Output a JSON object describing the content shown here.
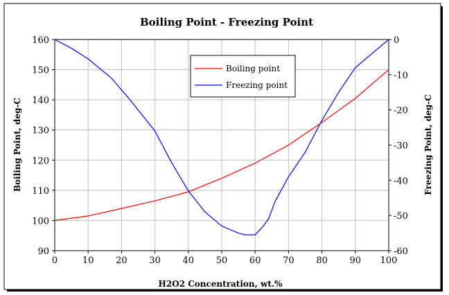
{
  "chart_data": {
    "type": "line",
    "title": "Boiling Point  -  Freezing Point",
    "xlabel": "H2O2 Concentration, wt.%",
    "ylabel": "Boiling Point, deg-C",
    "y2label": "Freezing Point, deg-C",
    "xlim": [
      0,
      100
    ],
    "ylim": [
      90,
      160
    ],
    "y2lim": [
      -60,
      0
    ],
    "x_ticks": [
      0,
      10,
      20,
      30,
      40,
      50,
      60,
      70,
      80,
      90,
      100
    ],
    "y_ticks": [
      90,
      100,
      110,
      120,
      130,
      140,
      150,
      160
    ],
    "y2_ticks": [
      -60,
      -50,
      -40,
      -30,
      -20,
      -10,
      0
    ],
    "grid": true,
    "legend_position": "top-center",
    "series": [
      {
        "name": "Boiling point",
        "axis": "left",
        "color": "#ff0000",
        "x": [
          0,
          10,
          20,
          30,
          40,
          50,
          60,
          70,
          80,
          90,
          100
        ],
        "y": [
          100,
          101.5,
          104,
          106.5,
          109.5,
          114,
          119,
          125,
          132.5,
          140.5,
          150
        ]
      },
      {
        "name": "Freezing point",
        "axis": "right",
        "color": "#0000ff",
        "x": [
          0,
          5,
          10,
          17,
          22,
          30,
          35,
          40,
          45,
          50,
          55,
          57,
          60,
          62,
          64,
          66,
          70,
          75,
          80,
          85,
          90,
          95,
          100
        ],
        "y": [
          0,
          -2.5,
          -5.5,
          -11,
          -16.5,
          -26,
          -35,
          -43,
          -49,
          -53,
          -55,
          -55.5,
          -55.5,
          -53.5,
          -51,
          -46,
          -39,
          -32,
          -23,
          -15,
          -8,
          -4,
          0
        ]
      }
    ]
  }
}
